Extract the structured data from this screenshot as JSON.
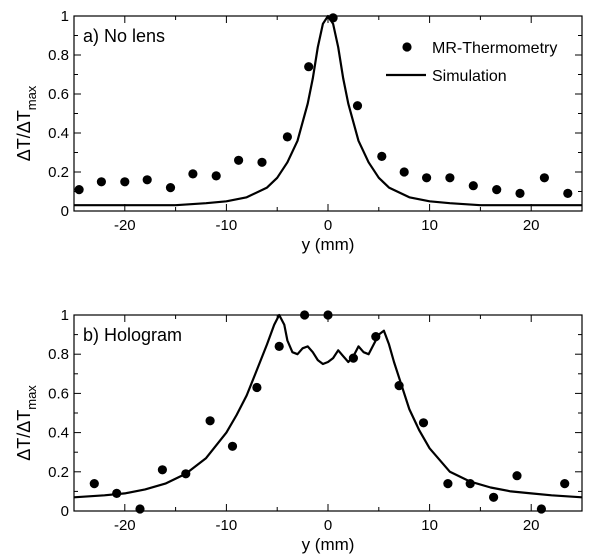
{
  "chart_data": [
    {
      "type": "line",
      "panel_label": "a) No lens",
      "xlabel": "y (mm)",
      "ylabel": {
        "main": "ΔT/ΔT",
        "sub": "max"
      },
      "xlim": [
        -25,
        25
      ],
      "ylim": [
        0,
        1
      ],
      "xticks": [
        -20,
        -10,
        0,
        10,
        20
      ],
      "yticks": [
        0,
        0.2,
        0.4,
        0.6,
        0.8,
        1
      ],
      "legend": {
        "position": "top-right",
        "entries": [
          "MR-Thermometry",
          "Simulation"
        ]
      },
      "series": [
        {
          "name": "MR-Thermometry",
          "type": "scatter",
          "x": [
            -24.5,
            -22.3,
            -20.0,
            -17.8,
            -15.5,
            -13.3,
            -11.0,
            -8.8,
            -6.5,
            -4.0,
            -1.9,
            0.5,
            2.9,
            5.3,
            7.5,
            9.7,
            12.0,
            14.3,
            16.6,
            18.9,
            21.3,
            23.6
          ],
          "y": [
            0.11,
            0.15,
            0.15,
            0.16,
            0.12,
            0.19,
            0.18,
            0.26,
            0.25,
            0.38,
            0.74,
            0.99,
            0.54,
            0.28,
            0.2,
            0.17,
            0.17,
            0.13,
            0.11,
            0.09,
            0.17,
            0.09
          ]
        },
        {
          "name": "Simulation",
          "type": "line",
          "x": [
            -25,
            -20,
            -15,
            -12,
            -10,
            -8,
            -6,
            -5,
            -4,
            -3,
            -2,
            -1.5,
            -1,
            -0.5,
            0,
            0.5,
            1,
            1.5,
            2,
            3,
            4,
            5,
            6,
            8,
            10,
            12,
            15,
            20,
            25
          ],
          "y": [
            0.03,
            0.03,
            0.03,
            0.04,
            0.05,
            0.07,
            0.12,
            0.17,
            0.25,
            0.36,
            0.55,
            0.68,
            0.84,
            0.96,
            1.0,
            0.96,
            0.84,
            0.68,
            0.55,
            0.36,
            0.25,
            0.17,
            0.12,
            0.07,
            0.05,
            0.04,
            0.03,
            0.03,
            0.03
          ]
        }
      ]
    },
    {
      "type": "line",
      "panel_label": "b) Hologram",
      "xlabel": "y (mm)",
      "ylabel": {
        "main": "ΔT/ΔT",
        "sub": "max"
      },
      "xlim": [
        -25,
        25
      ],
      "ylim": [
        0,
        1
      ],
      "xticks": [
        -20,
        -10,
        0,
        10,
        20
      ],
      "yticks": [
        0,
        0.2,
        0.4,
        0.6,
        0.8,
        1
      ],
      "series": [
        {
          "name": "MR-Thermometry",
          "type": "scatter",
          "x": [
            -23.0,
            -20.8,
            -18.5,
            -16.3,
            -14.0,
            -11.6,
            -9.4,
            -7.0,
            -4.8,
            -2.3,
            0.0,
            2.5,
            4.7,
            7.0,
            9.4,
            11.8,
            14.0,
            16.3,
            18.6,
            21.0,
            23.3
          ],
          "y": [
            0.14,
            0.09,
            0.01,
            0.21,
            0.19,
            0.46,
            0.33,
            0.63,
            0.84,
            1.0,
            1.0,
            0.78,
            0.89,
            0.64,
            0.45,
            0.14,
            0.14,
            0.07,
            0.18,
            0.01,
            0.14
          ]
        },
        {
          "name": "Simulation",
          "type": "line",
          "x": [
            -25,
            -22,
            -20,
            -18,
            -16,
            -14,
            -12,
            -10,
            -9,
            -8,
            -7,
            -6,
            -5.3,
            -4.8,
            -4.3,
            -4,
            -3.5,
            -3,
            -2.5,
            -2,
            -1.5,
            -1,
            -0.5,
            0,
            0.5,
            1,
            1.5,
            2,
            2.5,
            3,
            3.5,
            4,
            4.5,
            5,
            5.5,
            6,
            6.5,
            7,
            8,
            9,
            10,
            12,
            14,
            16,
            18,
            20,
            22,
            25
          ],
          "y": [
            0.07,
            0.08,
            0.09,
            0.11,
            0.14,
            0.19,
            0.27,
            0.4,
            0.49,
            0.59,
            0.72,
            0.85,
            0.95,
            1.0,
            0.95,
            0.87,
            0.81,
            0.8,
            0.83,
            0.84,
            0.81,
            0.77,
            0.75,
            0.76,
            0.78,
            0.82,
            0.79,
            0.76,
            0.79,
            0.84,
            0.81,
            0.8,
            0.85,
            0.9,
            0.92,
            0.85,
            0.76,
            0.68,
            0.52,
            0.41,
            0.32,
            0.2,
            0.15,
            0.12,
            0.1,
            0.09,
            0.08,
            0.07
          ]
        }
      ]
    }
  ]
}
